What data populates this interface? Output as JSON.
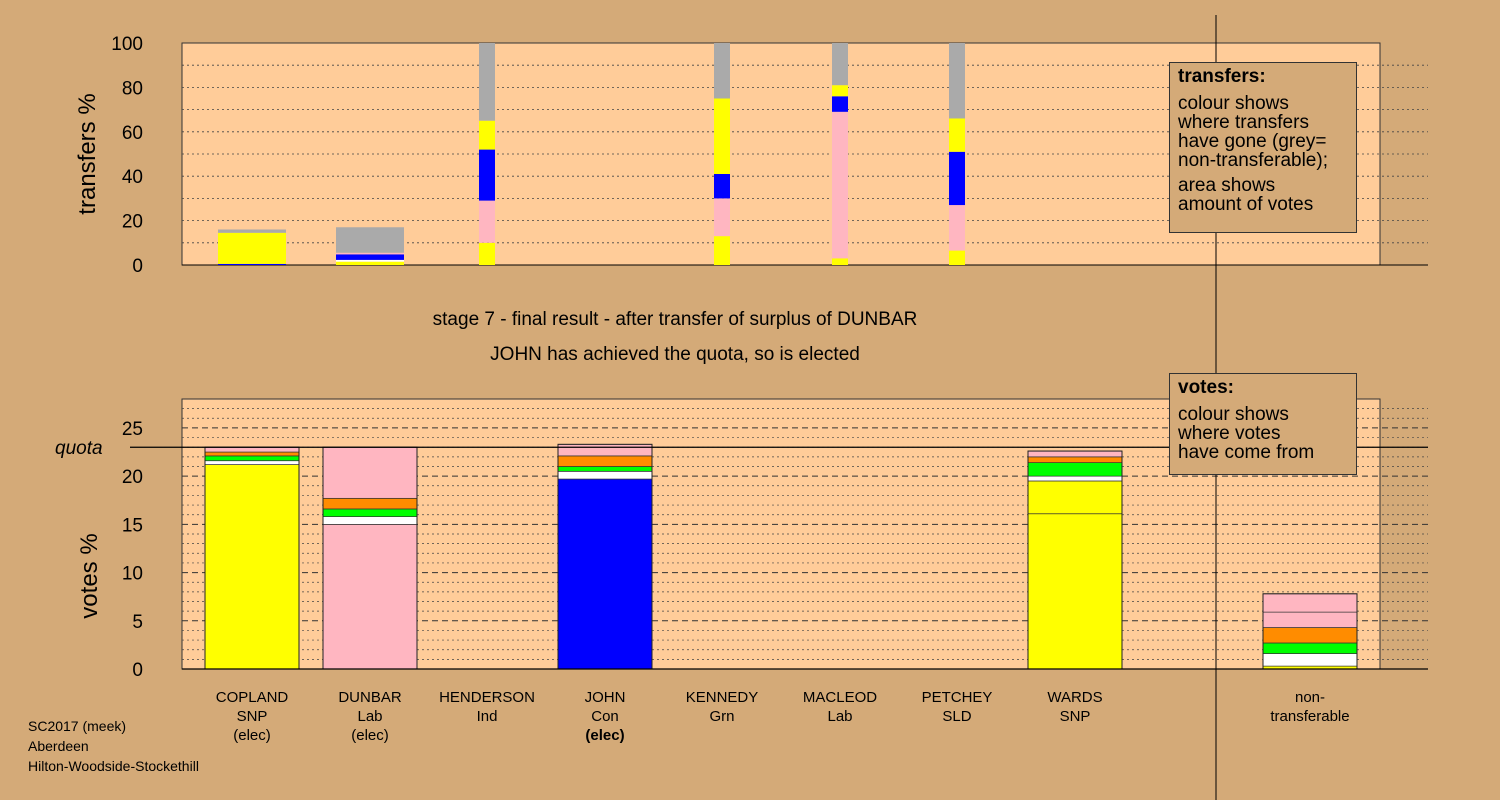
{
  "header": {
    "stage": "stage 7 - final result - after transfer of surplus of DUNBAR",
    "status": "JOHN has achieved the quota, so is elected"
  },
  "legend_transfers": {
    "title": "transfers:",
    "lines_a": [
      "colour shows",
      "where transfers",
      "have gone (grey=",
      "non-transferable);"
    ],
    "lines_b": [
      "area shows",
      "amount of votes"
    ]
  },
  "legend_votes": {
    "title": "votes:",
    "lines": [
      "colour shows",
      "where votes",
      "have come from"
    ]
  },
  "footer": {
    "line1": "SC2017 (meek)",
    "line2": "Aberdeen",
    "line3": "Hilton-Woodside-Stockethill"
  },
  "colors": {
    "background": "#d4aa78",
    "plot": "#ffcc99",
    "snp": "#ffff00",
    "con": "#0000ff",
    "lab": "#ffb6c1",
    "grn": "#00ff00",
    "ind": "#ff8c00",
    "sld": "#ffffff",
    "nontransferable": "#aaaaaa"
  },
  "chart_data": [
    {
      "type": "bar",
      "name": "transfers",
      "ylabel": "transfers %",
      "ylim": [
        0,
        100
      ],
      "yticks": [
        0,
        20,
        40,
        60,
        80,
        100
      ],
      "note": "stacked segments, each {c: colour key, v: percent}",
      "bars": [
        {
          "candidate": "COPLAND",
          "width": "wide",
          "segments": [
            {
              "c": "con",
              "v": 0.5
            },
            {
              "c": "snp",
              "v": 14
            },
            {
              "c": "nontransferable",
              "v": 1.5
            }
          ]
        },
        {
          "candidate": "DUNBAR",
          "width": "wide",
          "segments": [
            {
              "c": "snp",
              "v": 1.5
            },
            {
              "c": "sld",
              "v": 0.8
            },
            {
              "c": "con",
              "v": 2.5
            },
            {
              "c": "lab",
              "v": 0.7
            },
            {
              "c": "nontransferable",
              "v": 11.5
            }
          ]
        },
        {
          "candidate": "HENDERSON",
          "width": "narrow",
          "segments": [
            {
              "c": "snp",
              "v": 10
            },
            {
              "c": "lab",
              "v": 19
            },
            {
              "c": "con",
              "v": 23
            },
            {
              "c": "snp",
              "v": 13
            },
            {
              "c": "nontransferable",
              "v": 35
            }
          ]
        },
        {
          "candidate": "KENNEDY",
          "width": "narrow",
          "segments": [
            {
              "c": "snp",
              "v": 13
            },
            {
              "c": "lab",
              "v": 17
            },
            {
              "c": "con",
              "v": 11
            },
            {
              "c": "snp",
              "v": 34
            },
            {
              "c": "nontransferable",
              "v": 25
            }
          ]
        },
        {
          "candidate": "MACLEOD",
          "width": "narrow",
          "segments": [
            {
              "c": "snp",
              "v": 3
            },
            {
              "c": "lab",
              "v": 66
            },
            {
              "c": "con",
              "v": 7
            },
            {
              "c": "snp",
              "v": 5
            },
            {
              "c": "nontransferable",
              "v": 19
            }
          ]
        },
        {
          "candidate": "PETCHEY",
          "width": "narrow",
          "segments": [
            {
              "c": "snp",
              "v": 6.5
            },
            {
              "c": "lab",
              "v": 20.5
            },
            {
              "c": "con",
              "v": 24
            },
            {
              "c": "snp",
              "v": 15
            },
            {
              "c": "nontransferable",
              "v": 34
            }
          ]
        }
      ]
    },
    {
      "type": "bar",
      "name": "votes",
      "ylabel": "votes %",
      "quota_label": "quota",
      "quota": 23,
      "ylim": [
        0,
        28
      ],
      "yticks": [
        0,
        5,
        10,
        15,
        20,
        25
      ],
      "note": "stacked segments, each {c: colour key, v: percent}",
      "bars": [
        {
          "candidate": "COPLAND",
          "party": "SNP",
          "status": "(elec)",
          "bold_status": false,
          "segments": [
            {
              "c": "snp",
              "v": 21.2
            },
            {
              "c": "sld",
              "v": 0.4
            },
            {
              "c": "grn",
              "v": 0.5
            },
            {
              "c": "ind",
              "v": 0.4
            },
            {
              "c": "lab",
              "v": 0.5
            }
          ]
        },
        {
          "candidate": "DUNBAR",
          "party": "Lab",
          "status": "(elec)",
          "bold_status": false,
          "segments": [
            {
              "c": "lab",
              "v": 15
            },
            {
              "c": "sld",
              "v": 0.8
            },
            {
              "c": "grn",
              "v": 0.8
            },
            {
              "c": "ind",
              "v": 1.1
            },
            {
              "c": "lab",
              "v": 5.3
            }
          ]
        },
        {
          "candidate": "HENDERSON",
          "party": "Ind",
          "status": "",
          "bold_status": false,
          "segments": []
        },
        {
          "candidate": "JOHN",
          "party": "Con",
          "status": "(elec)",
          "bold_status": true,
          "segments": [
            {
              "c": "con",
              "v": 19.7
            },
            {
              "c": "sld",
              "v": 0.8
            },
            {
              "c": "grn",
              "v": 0.5
            },
            {
              "c": "ind",
              "v": 1.1
            },
            {
              "c": "lab",
              "v": 1.2
            }
          ]
        },
        {
          "candidate": "KENNEDY",
          "party": "Grn",
          "status": "",
          "bold_status": false,
          "segments": []
        },
        {
          "candidate": "MACLEOD",
          "party": "Lab",
          "status": "",
          "bold_status": false,
          "segments": []
        },
        {
          "candidate": "PETCHEY",
          "party": "SLD",
          "status": "",
          "bold_status": false,
          "segments": []
        },
        {
          "candidate": "WARDS",
          "party": "SNP",
          "status": "",
          "bold_status": false,
          "segments": [
            {
              "c": "snp",
              "v": 16.1
            },
            {
              "c": "snp",
              "v": 3.4
            },
            {
              "c": "sld",
              "v": 0.5
            },
            {
              "c": "grn",
              "v": 1.4
            },
            {
              "c": "ind",
              "v": 0.6
            },
            {
              "c": "lab",
              "v": 0.6
            }
          ]
        },
        {
          "candidate": "non-",
          "party": "transferable",
          "status": "",
          "bold_status": false,
          "segments": [
            {
              "c": "snp",
              "v": 0.3
            },
            {
              "c": "sld",
              "v": 1.3
            },
            {
              "c": "grn",
              "v": 1.1
            },
            {
              "c": "ind",
              "v": 1.6
            },
            {
              "c": "lab",
              "v": 1.6
            },
            {
              "c": "lab",
              "v": 1.9
            }
          ]
        }
      ]
    }
  ]
}
